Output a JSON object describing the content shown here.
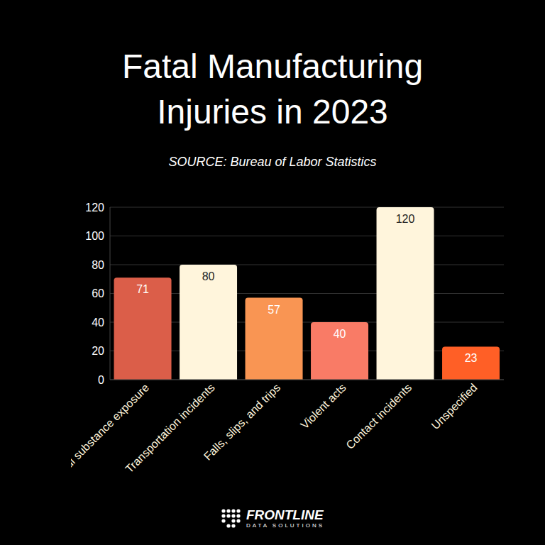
{
  "chart_data": {
    "type": "bar",
    "title": "Fatal Manufacturing Injuries in 2023",
    "subtitle": "SOURCE: Bureau of Labor Statistics",
    "annotations": [
      "FRONTLINE",
      "DATA SOLUTIONS"
    ],
    "categories": [
      "Harmful substance exposure",
      "Transportation incidents",
      "Falls, slips, and trips",
      "Violent acts",
      "Contact incidents",
      "Unspecified"
    ],
    "values": [
      71,
      80,
      57,
      40,
      120,
      23
    ],
    "colors": [
      "#db5e49",
      "#fff5dc",
      "#f99553",
      "#f97b66",
      "#fff5dc",
      "#ff5f26"
    ],
    "ylim": [
      0,
      120
    ],
    "yticks": [
      0,
      20,
      40,
      60,
      80,
      100,
      120
    ],
    "grid": true,
    "data_labels": true
  }
}
